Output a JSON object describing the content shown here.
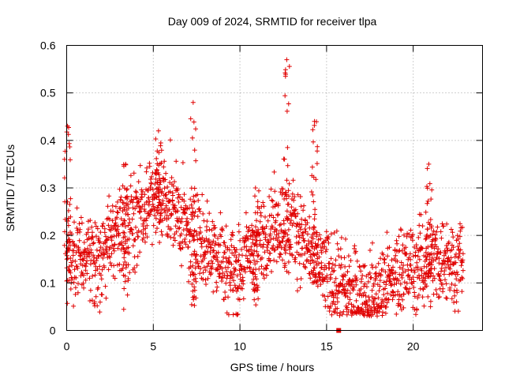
{
  "chart_data": {
    "type": "scatter",
    "title": "Day 009 of 2024, SRMTID for receiver tlpa",
    "xlabel": "GPS time / hours",
    "ylabel": "SRMTID / TECUs",
    "xlim": [
      0,
      24
    ],
    "ylim": [
      0,
      0.6
    ],
    "x_ticks": [
      0,
      5,
      10,
      15,
      20
    ],
    "x_tick_labels": [
      "0",
      "5",
      "10",
      "15",
      "20"
    ],
    "y_ticks": [
      0,
      0.1,
      0.2,
      0.3,
      0.4,
      0.5,
      0.6
    ],
    "y_tick_labels": [
      "0",
      "0.1",
      "0.2",
      "0.3",
      "0.4",
      "0.5",
      "0.6"
    ],
    "grid": true,
    "marker": "plus",
    "marker_color": "#e00000",
    "hour_range": [
      0,
      22.9
    ],
    "trend": {
      "hours": [
        0,
        0.5,
        1,
        1.5,
        2,
        2.5,
        3,
        3.5,
        4,
        4.5,
        5,
        5.5,
        6,
        6.5,
        7,
        7.5,
        8,
        8.5,
        9,
        9.5,
        10,
        10.5,
        11,
        11.5,
        12,
        12.5,
        13,
        13.5,
        14,
        14.5,
        15,
        15.5,
        16,
        16.5,
        17,
        17.5,
        18,
        18.5,
        19,
        19.5,
        20,
        20.5,
        21,
        21.5,
        22,
        22.5,
        22.9
      ],
      "values": [
        0.15,
        0.16,
        0.17,
        0.15,
        0.14,
        0.19,
        0.21,
        0.22,
        0.24,
        0.26,
        0.28,
        0.29,
        0.27,
        0.24,
        0.2,
        0.2,
        0.18,
        0.17,
        0.15,
        0.13,
        0.12,
        0.17,
        0.19,
        0.2,
        0.22,
        0.23,
        0.22,
        0.2,
        0.17,
        0.14,
        0.12,
        0.1,
        0.09,
        0.08,
        0.07,
        0.07,
        0.08,
        0.1,
        0.12,
        0.13,
        0.13,
        0.14,
        0.15,
        0.15,
        0.15,
        0.14,
        0.15
      ]
    },
    "spread": 0.045,
    "clusters": [
      {
        "hour": 0.05,
        "low": 0.1,
        "high": 0.43
      },
      {
        "hour": 3.4,
        "low": 0.04,
        "high": 0.35
      },
      {
        "hour": 5.3,
        "low": 0.18,
        "high": 0.42
      },
      {
        "hour": 7.3,
        "low": 0.05,
        "high": 0.48
      },
      {
        "hour": 10.9,
        "low": 0.05,
        "high": 0.3
      },
      {
        "hour": 12.7,
        "low": 0.12,
        "high": 0.57
      },
      {
        "hour": 14.3,
        "low": 0.1,
        "high": 0.44
      },
      {
        "hour": 20.9,
        "low": 0.1,
        "high": 0.35
      },
      {
        "hour": 15.7,
        "low": 0.0,
        "high": 0.0
      }
    ]
  }
}
